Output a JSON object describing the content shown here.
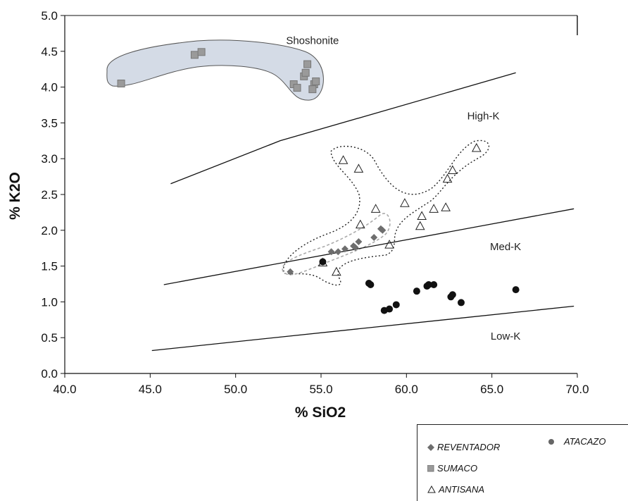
{
  "chart_data": {
    "type": "scatter",
    "xlabel": "% SiO2",
    "ylabel": "% K2O",
    "xlim": [
      40.0,
      70.0
    ],
    "ylim": [
      0.0,
      5.0
    ],
    "x_ticks": [
      "40.0",
      "45.0",
      "50.0",
      "55.0",
      "60.0",
      "65.0",
      "70.0"
    ],
    "y_ticks": [
      "0.0",
      "0.5",
      "1.0",
      "1.5",
      "2.0",
      "2.5",
      "3.0",
      "3.5",
      "4.0",
      "4.5",
      "5.0"
    ],
    "regions": [
      "Shoshonite",
      "High-K",
      "Med-K",
      "Low-K"
    ],
    "region_label_positions": [
      [
        54.5,
        4.6
      ],
      [
        64.5,
        3.55
      ],
      [
        65.8,
        1.72
      ],
      [
        65.8,
        0.47
      ]
    ],
    "boundary_lines": [
      {
        "x": [
          46.2,
          52.6,
          66.4
        ],
        "y": [
          2.65,
          3.25,
          4.2
        ]
      },
      {
        "x": [
          45.8,
          69.8
        ],
        "y": [
          1.24,
          2.3
        ]
      },
      {
        "x": [
          45.1,
          69.8
        ],
        "y": [
          0.32,
          0.94
        ]
      }
    ],
    "series": [
      {
        "name": "REVENTADOR",
        "marker": "diamond",
        "color": "#6e6e6e",
        "x": [
          53.2,
          55.6,
          56.0,
          56.4,
          56.9,
          57.2,
          57.0,
          58.1,
          58.5,
          58.6
        ],
        "y": [
          1.42,
          1.7,
          1.7,
          1.74,
          1.78,
          1.84,
          1.76,
          1.9,
          2.02,
          2.0
        ]
      },
      {
        "name": "SUMACO",
        "marker": "square",
        "color": "#9a9a9a",
        "x": [
          43.3,
          47.6,
          48.0,
          53.4,
          53.6,
          54.0,
          54.1,
          54.2,
          54.6,
          54.7,
          54.5
        ],
        "y": [
          4.05,
          4.45,
          4.49,
          4.04,
          3.99,
          4.15,
          4.2,
          4.32,
          4.04,
          4.08,
          3.97
        ]
      },
      {
        "name": "ANTISANA",
        "marker": "triangle",
        "color": "#222222",
        "x": [
          56.3,
          57.2,
          58.2,
          57.3,
          59.9,
          60.9,
          61.6,
          60.8,
          62.3,
          62.4,
          62.7,
          64.1,
          59.0,
          55.9,
          55.1
        ],
        "y": [
          2.98,
          2.86,
          2.3,
          2.08,
          2.38,
          2.2,
          2.3,
          2.06,
          2.32,
          2.72,
          2.84,
          3.15,
          1.8,
          1.42,
          1.55
        ]
      },
      {
        "name": "ATACAZO",
        "marker": "circle",
        "color": "#111111",
        "x": [
          55.1,
          57.8,
          57.9,
          58.7,
          59.0,
          59.4,
          60.6,
          61.2,
          61.3,
          61.6,
          62.6,
          62.7,
          63.2,
          66.4
        ],
        "y": [
          1.56,
          1.26,
          1.24,
          0.88,
          0.9,
          0.96,
          1.15,
          1.22,
          1.24,
          1.24,
          1.07,
          1.1,
          0.99,
          1.17
        ]
      }
    ],
    "groups": [
      {
        "name": "SUMACO",
        "fill": "#d4dbe6",
        "stroke": "#555555",
        "dashed": false
      },
      {
        "name": "ANTISANA",
        "fill": "none",
        "stroke": "#222222",
        "dashed": true
      },
      {
        "name": "REVENTADOR",
        "fill": "none",
        "stroke": "#aaaaaa",
        "dashed": true
      }
    ],
    "legend_placement": "bottom-right",
    "grid": false
  },
  "legend": {
    "reventador": "REVENTADOR",
    "atacazo": "ATACAZO",
    "sumaco": "SUMACO",
    "antisana": "ANTISANA"
  }
}
